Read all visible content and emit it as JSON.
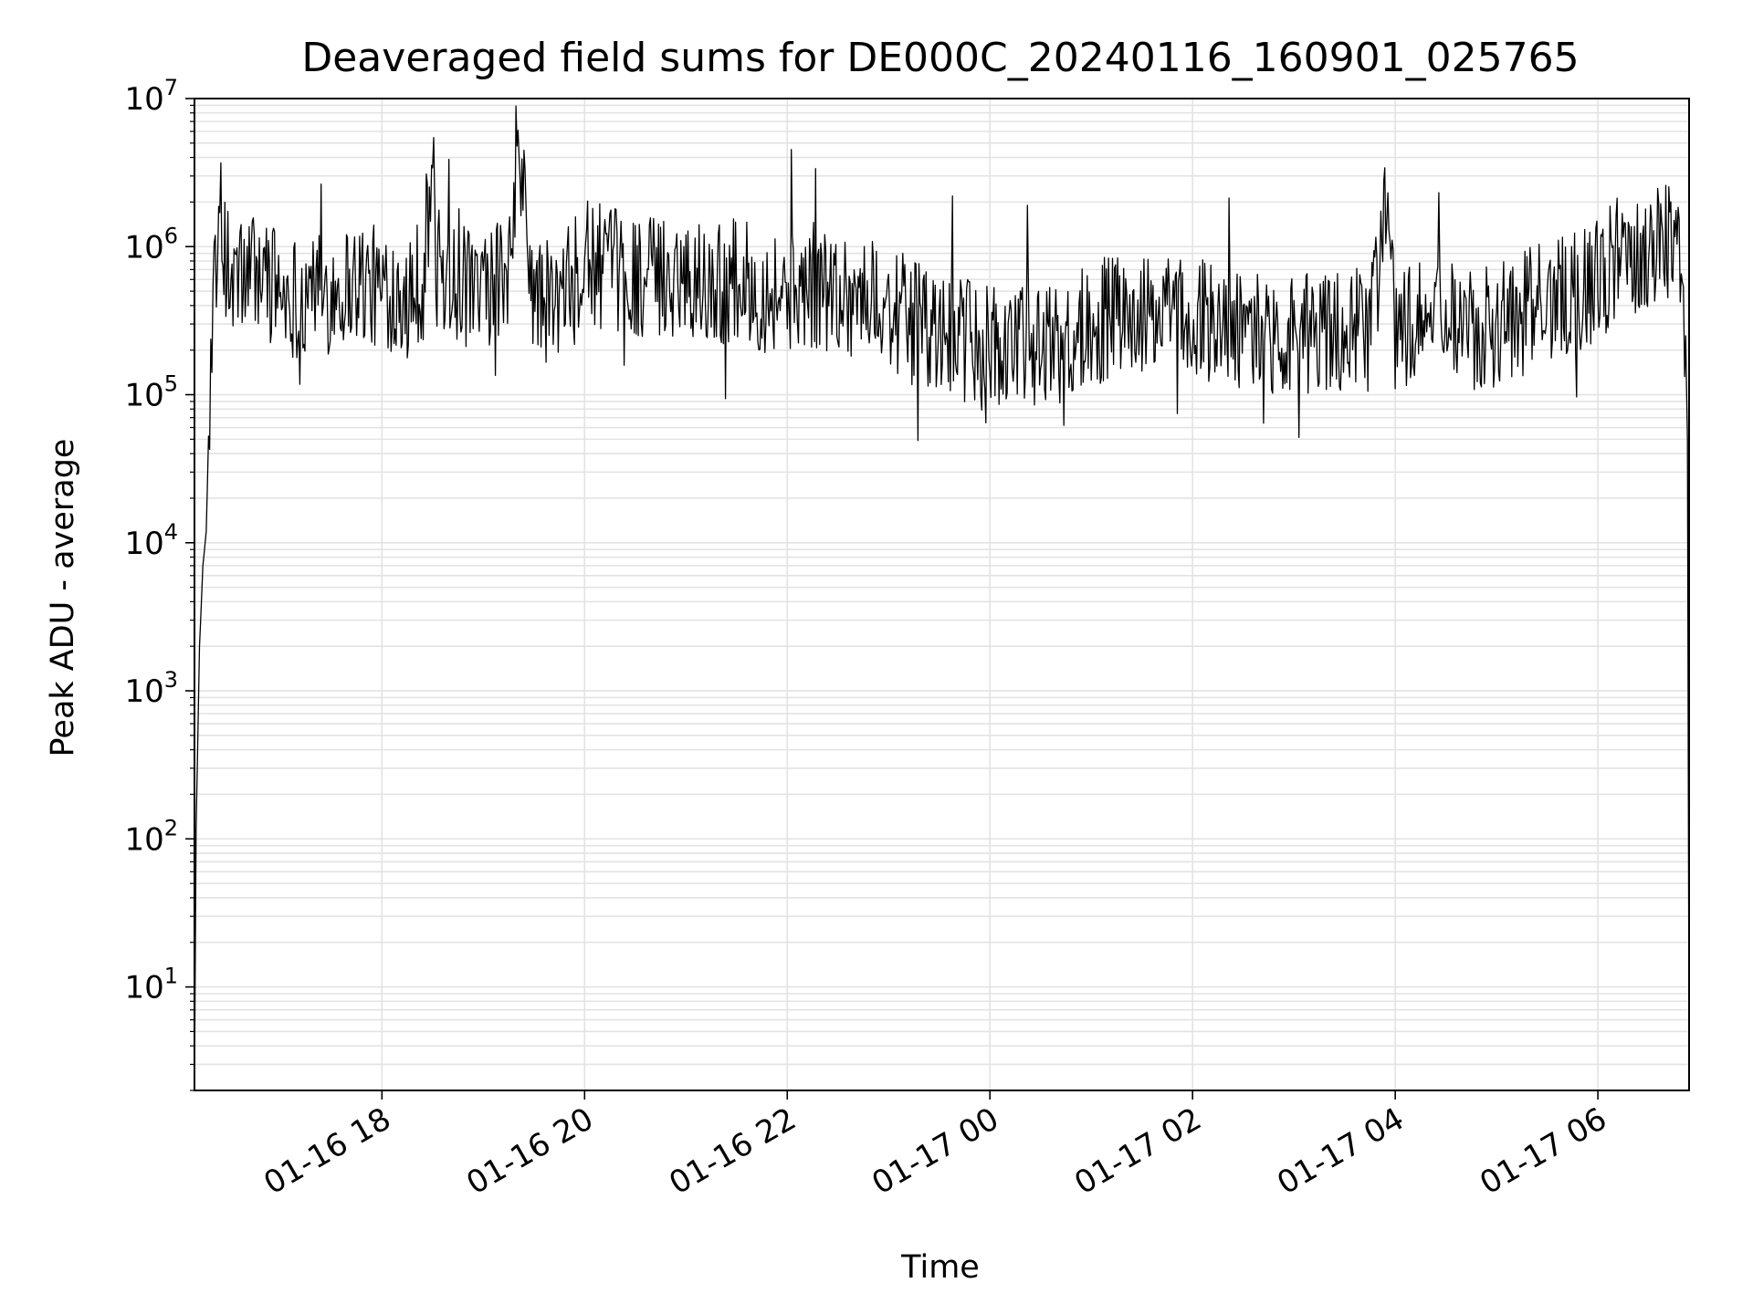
{
  "chart_data": {
    "type": "line",
    "title": "Deaveraged field sums for DE000C_20240116_160901_025765",
    "xlabel": "Time",
    "ylabel": "Peak ADU - average",
    "yscale": "log",
    "ylim": [
      2,
      10000000
    ],
    "xlim": [
      "2024-01-16 16:09",
      "2024-01-17 06:54"
    ],
    "grid": true,
    "line_color": "#000000",
    "x_ticks": [
      {
        "value": "2024-01-16 18:00",
        "label": "01-16 18"
      },
      {
        "value": "2024-01-16 20:00",
        "label": "01-16 20"
      },
      {
        "value": "2024-01-16 22:00",
        "label": "01-16 22"
      },
      {
        "value": "2024-01-17 00:00",
        "label": "01-17 00"
      },
      {
        "value": "2024-01-17 02:00",
        "label": "01-17 02"
      },
      {
        "value": "2024-01-17 04:00",
        "label": "01-17 04"
      },
      {
        "value": "2024-01-17 06:00",
        "label": "01-17 06"
      }
    ],
    "y_ticks": [
      {
        "value": 10,
        "base": "10",
        "exp": "1"
      },
      {
        "value": 100,
        "base": "10",
        "exp": "2"
      },
      {
        "value": 1000,
        "base": "10",
        "exp": "3"
      },
      {
        "value": 10000,
        "base": "10",
        "exp": "4"
      },
      {
        "value": 100000,
        "base": "10",
        "exp": "5"
      },
      {
        "value": 1000000,
        "base": "10",
        "exp": "6"
      },
      {
        "value": 10000000,
        "base": "10",
        "exp": "7"
      }
    ],
    "series": [
      {
        "x": [
          "2024-01-16 16:09",
          "2024-01-16 16:10",
          "2024-01-16 16:12",
          "2024-01-16 16:14",
          "2024-01-16 16:16",
          "2024-01-16 16:18",
          "2024-01-16 16:20",
          "2024-01-16 16:22",
          "2024-01-16 16:24",
          "2024-01-16 16:27",
          "2024-01-16 16:30",
          "2024-01-16 16:45",
          "2024-01-16 17:00",
          "2024-01-16 17:15",
          "2024-01-16 17:30",
          "2024-01-16 17:45",
          "2024-01-16 18:00",
          "2024-01-16 18:15",
          "2024-01-16 18:25",
          "2024-01-16 18:30",
          "2024-01-16 18:32",
          "2024-01-16 18:45",
          "2024-01-16 19:00",
          "2024-01-16 19:15",
          "2024-01-16 19:20",
          "2024-01-16 19:30",
          "2024-01-16 19:45",
          "2024-01-16 20:00",
          "2024-01-16 20:15",
          "2024-01-16 20:30",
          "2024-01-16 20:45",
          "2024-01-16 21:00",
          "2024-01-16 21:15",
          "2024-01-16 21:30",
          "2024-01-16 21:45",
          "2024-01-16 22:00",
          "2024-01-16 22:15",
          "2024-01-16 22:30",
          "2024-01-16 22:45",
          "2024-01-16 23:00",
          "2024-01-16 23:15",
          "2024-01-16 23:30",
          "2024-01-16 23:45",
          "2024-01-17 00:00",
          "2024-01-17 00:15",
          "2024-01-17 00:30",
          "2024-01-17 00:45",
          "2024-01-17 01:00",
          "2024-01-17 01:15",
          "2024-01-17 01:30",
          "2024-01-17 01:45",
          "2024-01-17 02:00",
          "2024-01-17 02:15",
          "2024-01-17 02:30",
          "2024-01-17 02:45",
          "2024-01-17 03:00",
          "2024-01-17 03:15",
          "2024-01-17 03:30",
          "2024-01-17 03:45",
          "2024-01-17 03:55",
          "2024-01-17 04:00",
          "2024-01-17 04:15",
          "2024-01-17 04:30",
          "2024-01-17 04:45",
          "2024-01-17 05:00",
          "2024-01-17 05:15",
          "2024-01-17 05:30",
          "2024-01-17 05:45",
          "2024-01-17 06:00",
          "2024-01-17 06:15",
          "2024-01-17 06:30",
          "2024-01-17 06:45",
          "2024-01-17 06:50",
          "2024-01-17 06:52",
          "2024-01-17 06:53",
          "2024-01-17 06:54"
        ],
        "y": [
          2,
          120,
          2000,
          7000,
          12000,
          110000,
          500000,
          900000,
          700000,
          1000000,
          550000,
          700000,
          500000,
          450000,
          500000,
          600000,
          500000,
          550000,
          600000,
          4000000,
          700000,
          550000,
          500000,
          600000,
          5000000,
          450000,
          400000,
          800000,
          700000,
          650000,
          600000,
          700000,
          550000,
          600000,
          500000,
          500000,
          550000,
          500000,
          450000,
          400000,
          300000,
          250000,
          230000,
          200000,
          210000,
          220000,
          230000,
          300000,
          350000,
          330000,
          320000,
          350000,
          300000,
          250000,
          270000,
          260000,
          250000,
          260000,
          280000,
          2000000,
          280000,
          300000,
          320000,
          280000,
          300000,
          350000,
          450000,
          500000,
          600000,
          900000,
          1000000,
          1200000,
          500000,
          250000,
          50000,
          3
        ]
      }
    ]
  }
}
